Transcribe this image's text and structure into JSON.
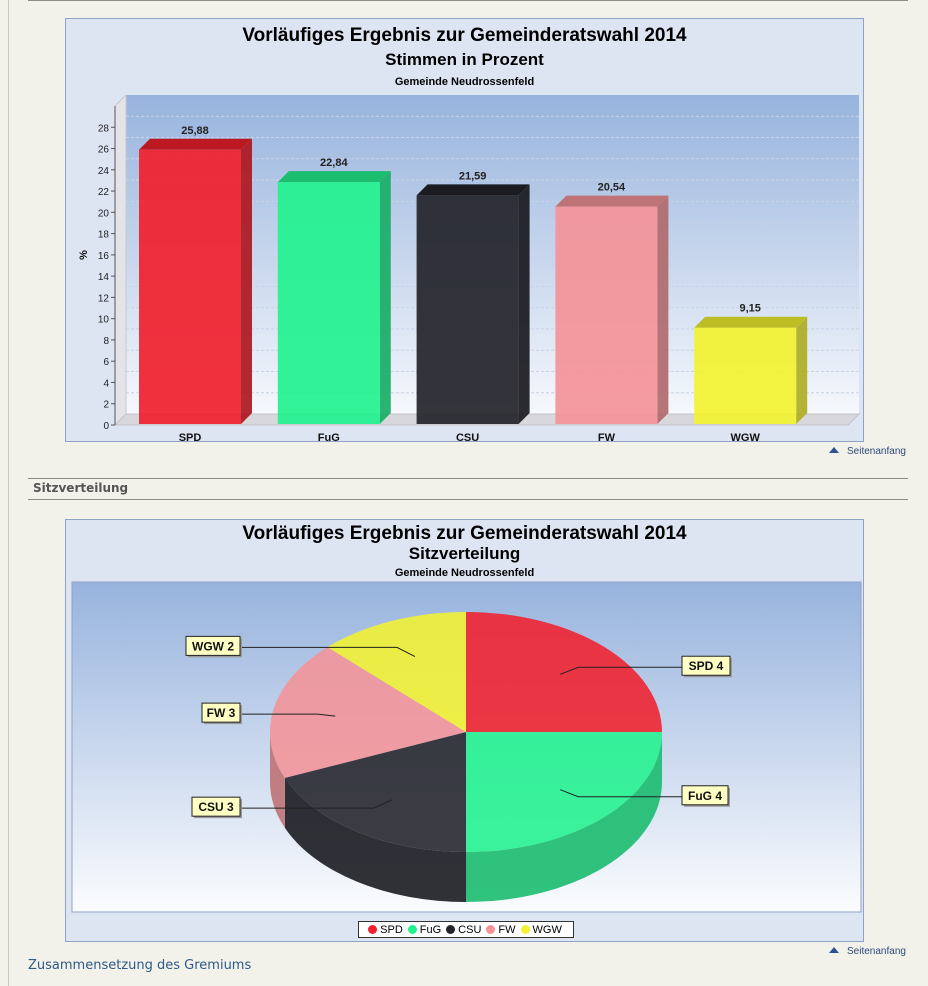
{
  "bar_chart": {
    "title": "Vorläufiges Ergebnis zur Gemeinderatswahl 2014",
    "subtitle": "Stimmen in Prozent",
    "caption": "Gemeinde Neudrossenfeld"
  },
  "pie_chart": {
    "title": "Vorläufiges Ergebnis zur Gemeinderatswahl 2014",
    "subtitle": "Sitzverteilung",
    "caption": "Gemeinde Neudrossenfeld",
    "legend": [
      "SPD",
      "FuG",
      "CSU",
      "FW",
      "WGW"
    ]
  },
  "section": {
    "heading": "Sitzverteilung"
  },
  "links": {
    "top1": "Seitenanfang",
    "top2": "Seitenanfang",
    "bottom": "Zusammensetzung des Gremiums"
  },
  "colors": {
    "SPD": "#f0202c",
    "FuG": "#22f28e",
    "CSU": "#23232a",
    "FW": "#f49398",
    "WGW": "#f2f230"
  },
  "chart_data": [
    {
      "type": "bar",
      "title": "Vorläufiges Ergebnis zur Gemeinderatswahl 2014",
      "subtitle": "Stimmen in Prozent",
      "categories": [
        "SPD",
        "FuG",
        "CSU",
        "FW",
        "WGW"
      ],
      "values": [
        25.88,
        22.84,
        21.59,
        20.54,
        9.15
      ],
      "value_labels": [
        "25,88",
        "22,84",
        "21,59",
        "20,54",
        "9,15"
      ],
      "ylabel": "%",
      "ylim": [
        0,
        30
      ],
      "yticks": [
        "0",
        "2",
        "4",
        "6",
        "8",
        "10",
        "12",
        "14",
        "16",
        "18",
        "20",
        "22",
        "24",
        "26",
        "28"
      ],
      "grid": true
    },
    {
      "type": "pie",
      "title": "Vorläufiges Ergebnis zur Gemeinderatswahl 2014",
      "subtitle": "Sitzverteilung",
      "categories": [
        "SPD",
        "FuG",
        "CSU",
        "FW",
        "WGW"
      ],
      "values": [
        4,
        4,
        3,
        3,
        2
      ],
      "labels": [
        "SPD 4",
        "FuG 4",
        "CSU 3",
        "FW 3",
        "WGW 2"
      ],
      "legend": "bottom"
    }
  ]
}
